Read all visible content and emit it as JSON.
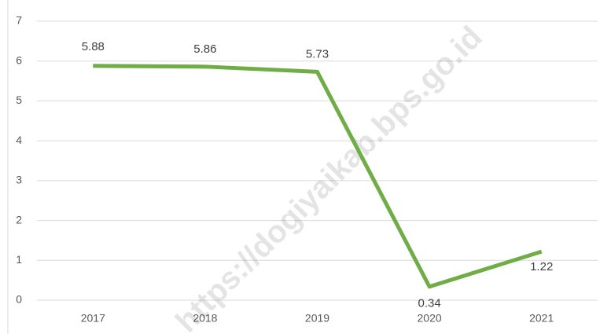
{
  "chart_data": {
    "type": "line",
    "categories": [
      "2017",
      "2018",
      "2019",
      "2020",
      "2021"
    ],
    "series": [
      {
        "name": null,
        "color": "#70ad47",
        "values": [
          5.88,
          5.86,
          5.73,
          0.34,
          1.22
        ]
      }
    ],
    "ylim": [
      0,
      7
    ],
    "yticks": [
      0,
      1,
      2,
      3,
      4,
      5,
      6,
      7
    ],
    "grid": true,
    "watermark": "https://dogiyaikab.bps.go.id"
  }
}
